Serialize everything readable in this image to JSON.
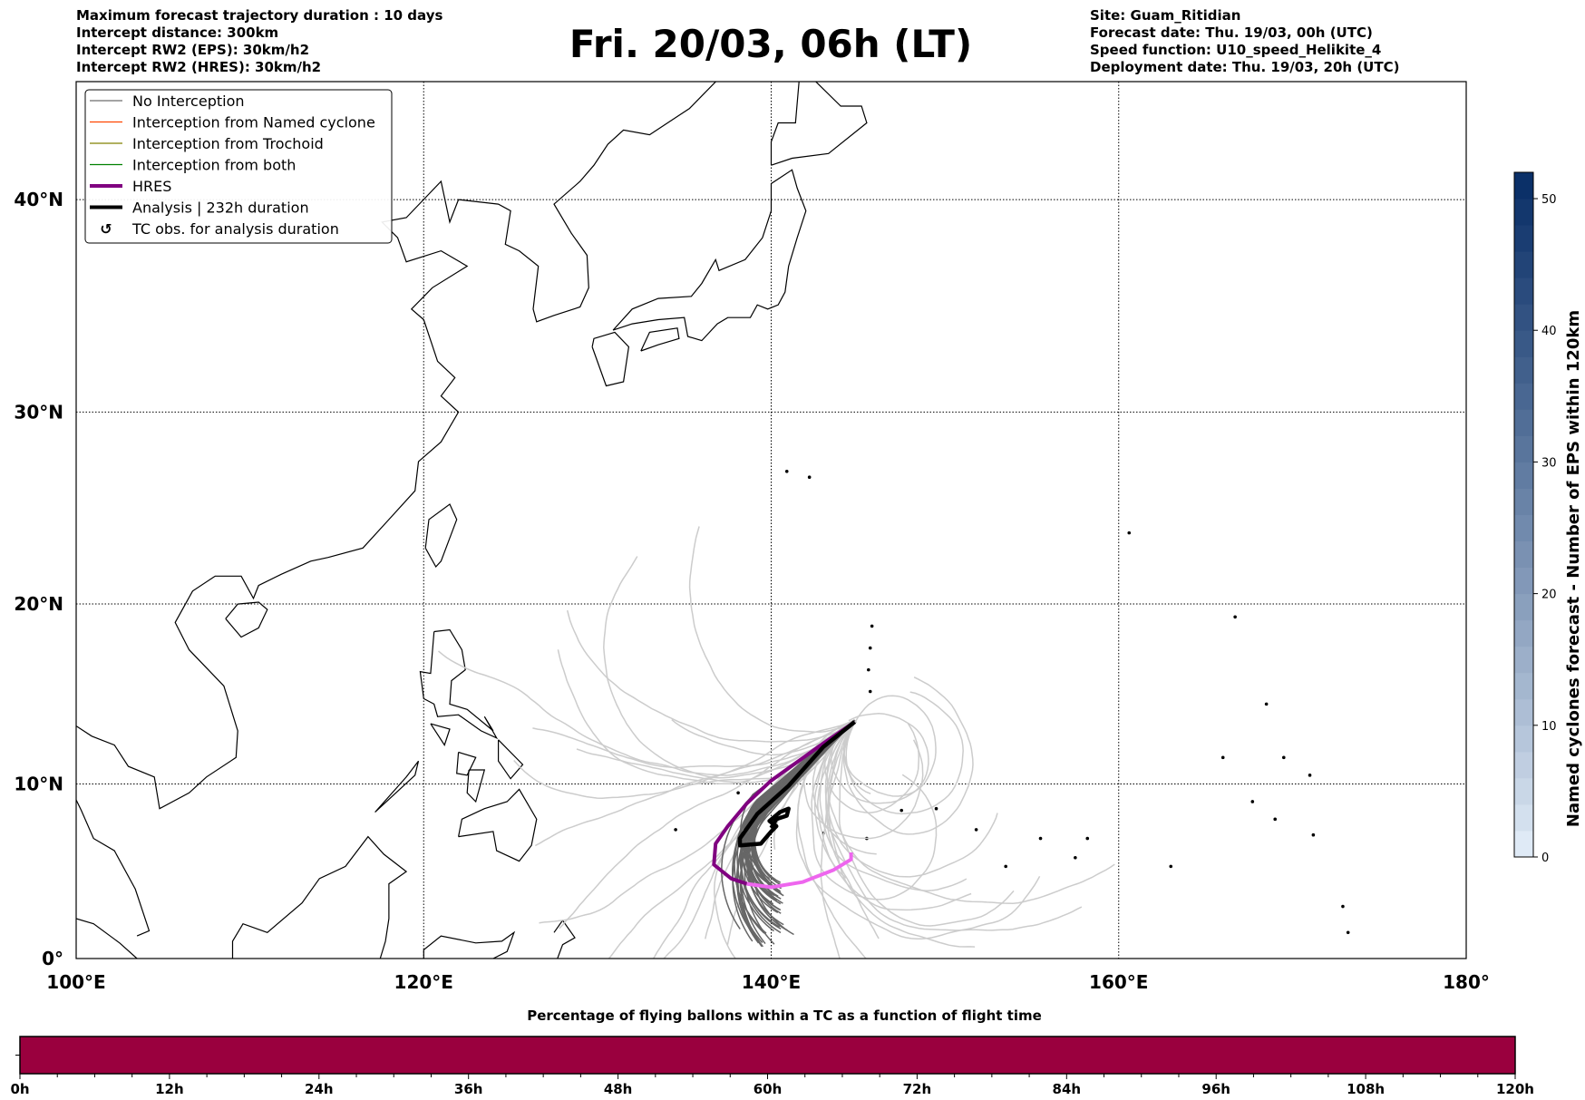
{
  "header": {
    "left_lines": [
      "Maximum forecast trajectory duration : 10 days",
      "Intercept distance: 300km",
      "Intercept RW2 (EPS):  30km/h2",
      "Intercept RW2 (HRES): 30km/h2"
    ],
    "title": "Fri. 20/03, 06h (LT)",
    "right_lines": [
      "Site: Guam_Ritidian",
      "Forecast date: Thu. 19/03, 00h (UTC)",
      "Speed function: U10_speed_Helikite_4",
      "Deployment date: Thu. 19/03, 20h (UTC)"
    ]
  },
  "map": {
    "lon_labels": [
      "100°E",
      "120°E",
      "140°E",
      "160°E",
      "180°"
    ],
    "lon_values": [
      100,
      120,
      140,
      160,
      180
    ],
    "lat_labels": [
      "0°",
      "10°N",
      "20°N",
      "30°N",
      "40°N"
    ],
    "lat_values": [
      0,
      10,
      20,
      30,
      40
    ],
    "extent": {
      "lon": [
        100,
        180
      ],
      "lat": [
        0,
        45
      ]
    },
    "site": {
      "name": "Guam_Ritidian",
      "lon": 144.8,
      "lat": 13.6
    }
  },
  "legend": {
    "items": [
      {
        "label": "No Interception",
        "color": "#6e6e6e",
        "style": "thin"
      },
      {
        "label": "Interception from Named cyclone",
        "color": "#ff4500",
        "style": "thin"
      },
      {
        "label": "Interception from Trochoid",
        "color": "#808000",
        "style": "thin"
      },
      {
        "label": "Interception from both",
        "color": "#008000",
        "style": "thin"
      },
      {
        "label": "HRES",
        "color": "#800080",
        "style": "thick"
      },
      {
        "label": "Analysis | 232h duration",
        "color": "#000000",
        "style": "thick"
      },
      {
        "label": "TC obs. for analysis duration",
        "color": "#000000",
        "style": "marker"
      }
    ]
  },
  "colorbar": {
    "label": "Named cyclones forecast - Number of EPS within 120km",
    "min": 0,
    "max": 52,
    "step": 2,
    "ticks": [
      "0",
      "10",
      "20",
      "30",
      "40",
      "50"
    ],
    "tick_values": [
      0,
      10,
      20,
      30,
      40,
      50
    ],
    "color_low": "#dfeaf6",
    "color_high": "#0b3068"
  },
  "flight_bar": {
    "title": "Percentage of flying ballons within a TC as a function of flight time",
    "tick_labels": [
      "0h",
      "12h",
      "24h",
      "36h",
      "48h",
      "60h",
      "72h",
      "84h",
      "96h",
      "108h",
      "120h"
    ],
    "max_hours": 120,
    "fill_fraction": 1.0,
    "color": "#9a003e"
  },
  "colors": {
    "hres_late": "#ee66ee",
    "eps_dark": "#666666",
    "eps_light": "#cccccc"
  }
}
